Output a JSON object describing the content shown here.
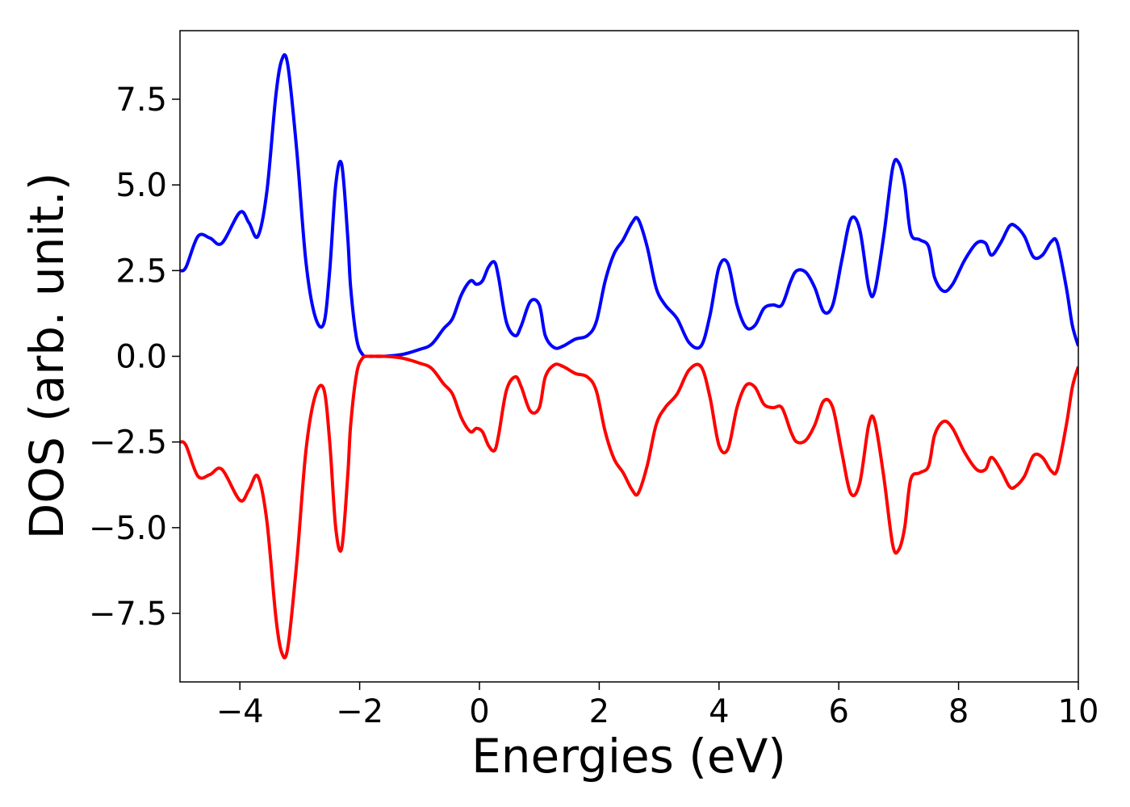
{
  "chart_data": {
    "type": "line",
    "title": "",
    "xlabel": "Energies (eV)",
    "ylabel": "DOS (arb. unit.)",
    "xlim": [
      -5,
      10
    ],
    "ylim": [
      -9.5,
      9.5
    ],
    "xticks": [
      -4,
      -2,
      0,
      2,
      4,
      6,
      8,
      10
    ],
    "xtick_labels": [
      "−4",
      "−2",
      "0",
      "2",
      "4",
      "6",
      "8",
      "10"
    ],
    "yticks": [
      7.5,
      5.0,
      2.5,
      0.0,
      -2.5,
      -5.0,
      -7.5
    ],
    "ytick_labels": [
      "7.5",
      "5.0",
      "2.5",
      "0.0",
      "−2.5",
      "−5.0",
      "−7.5"
    ],
    "grid": false,
    "legend": "none",
    "series": [
      {
        "color": "#0000ff",
        "x": [
          -5.0,
          -4.9,
          -4.7,
          -4.5,
          -4.3,
          -4.0,
          -3.85,
          -3.7,
          -3.55,
          -3.4,
          -3.3,
          -3.2,
          -3.05,
          -2.9,
          -2.75,
          -2.6,
          -2.5,
          -2.4,
          -2.3,
          -2.2,
          -2.15,
          -2.05,
          -1.95,
          -1.85,
          -1.75,
          -1.6,
          -1.3,
          -1.0,
          -0.8,
          -0.6,
          -0.45,
          -0.3,
          -0.15,
          -0.05,
          0.05,
          0.15,
          0.25,
          0.32,
          0.45,
          0.6,
          0.7,
          0.85,
          1.0,
          1.1,
          1.25,
          1.4,
          1.6,
          1.8,
          1.95,
          2.1,
          2.25,
          2.4,
          2.55,
          2.65,
          2.8,
          2.95,
          3.1,
          3.3,
          3.5,
          3.7,
          3.85,
          4.0,
          4.15,
          4.3,
          4.45,
          4.6,
          4.75,
          4.9,
          5.05,
          5.2,
          5.3,
          5.45,
          5.6,
          5.75,
          5.9,
          6.05,
          6.2,
          6.35,
          6.5,
          6.6,
          6.75,
          6.9,
          7.0,
          7.1,
          7.2,
          7.35,
          7.5,
          7.6,
          7.75,
          7.9,
          8.1,
          8.3,
          8.45,
          8.55,
          8.7,
          8.85,
          8.95,
          9.1,
          9.25,
          9.4,
          9.55,
          9.65,
          9.8,
          9.9,
          10.0
        ],
        "y": [
          2.5,
          2.6,
          3.5,
          3.45,
          3.3,
          4.2,
          3.9,
          3.5,
          4.8,
          7.6,
          8.65,
          8.5,
          6.0,
          2.8,
          1.2,
          0.95,
          2.5,
          5.0,
          5.6,
          3.5,
          2.0,
          0.5,
          0.05,
          0.0,
          0.0,
          0.0,
          0.05,
          0.2,
          0.35,
          0.8,
          1.1,
          1.8,
          2.2,
          2.1,
          2.2,
          2.6,
          2.75,
          2.3,
          1.0,
          0.6,
          0.9,
          1.6,
          1.5,
          0.6,
          0.25,
          0.3,
          0.5,
          0.6,
          1.0,
          2.2,
          3.0,
          3.4,
          3.9,
          4.0,
          3.2,
          2.0,
          1.5,
          1.1,
          0.4,
          0.3,
          1.2,
          2.6,
          2.7,
          1.5,
          0.85,
          0.9,
          1.4,
          1.5,
          1.5,
          2.2,
          2.5,
          2.45,
          2.0,
          1.3,
          1.5,
          2.8,
          4.0,
          3.7,
          2.0,
          1.9,
          3.5,
          5.5,
          5.65,
          5.0,
          3.6,
          3.4,
          3.2,
          2.3,
          1.9,
          2.1,
          2.8,
          3.3,
          3.3,
          2.95,
          3.3,
          3.8,
          3.8,
          3.5,
          2.9,
          2.95,
          3.35,
          3.3,
          2.0,
          0.9,
          0.3
        ]
      },
      {
        "color": "#ff0000",
        "x": [
          -5.0,
          -4.9,
          -4.7,
          -4.5,
          -4.3,
          -4.0,
          -3.85,
          -3.7,
          -3.55,
          -3.4,
          -3.3,
          -3.2,
          -3.05,
          -2.9,
          -2.75,
          -2.6,
          -2.5,
          -2.4,
          -2.3,
          -2.2,
          -2.15,
          -2.05,
          -1.95,
          -1.85,
          -1.75,
          -1.6,
          -1.3,
          -1.0,
          -0.8,
          -0.6,
          -0.45,
          -0.3,
          -0.15,
          -0.05,
          0.05,
          0.15,
          0.25,
          0.32,
          0.45,
          0.6,
          0.7,
          0.85,
          1.0,
          1.1,
          1.25,
          1.4,
          1.6,
          1.8,
          1.95,
          2.1,
          2.25,
          2.4,
          2.55,
          2.65,
          2.8,
          2.95,
          3.1,
          3.3,
          3.5,
          3.7,
          3.85,
          4.0,
          4.15,
          4.3,
          4.45,
          4.6,
          4.75,
          4.9,
          5.05,
          5.2,
          5.3,
          5.45,
          5.6,
          5.75,
          5.9,
          6.05,
          6.2,
          6.35,
          6.5,
          6.6,
          6.75,
          6.9,
          7.0,
          7.1,
          7.2,
          7.35,
          7.5,
          7.6,
          7.75,
          7.9,
          8.1,
          8.3,
          8.45,
          8.55,
          8.7,
          8.85,
          8.95,
          9.1,
          9.25,
          9.4,
          9.55,
          9.65,
          9.8,
          9.9,
          10.0
        ],
        "y": [
          -2.5,
          -2.6,
          -3.5,
          -3.45,
          -3.3,
          -4.2,
          -3.9,
          -3.5,
          -4.8,
          -7.6,
          -8.65,
          -8.5,
          -6.0,
          -2.8,
          -1.2,
          -0.95,
          -2.5,
          -5.0,
          -5.6,
          -3.5,
          -2.0,
          -0.5,
          -0.05,
          0.0,
          0.0,
          0.0,
          -0.05,
          -0.2,
          -0.35,
          -0.8,
          -1.1,
          -1.8,
          -2.2,
          -2.1,
          -2.2,
          -2.6,
          -2.75,
          -2.3,
          -1.0,
          -0.6,
          -0.9,
          -1.6,
          -1.5,
          -0.6,
          -0.25,
          -0.3,
          -0.5,
          -0.6,
          -1.0,
          -2.2,
          -3.0,
          -3.4,
          -3.9,
          -4.0,
          -3.2,
          -2.0,
          -1.5,
          -1.1,
          -0.4,
          -0.3,
          -1.2,
          -2.6,
          -2.7,
          -1.5,
          -0.85,
          -0.9,
          -1.4,
          -1.5,
          -1.5,
          -2.2,
          -2.5,
          -2.45,
          -2.0,
          -1.3,
          -1.5,
          -2.8,
          -4.0,
          -3.7,
          -2.0,
          -1.9,
          -3.5,
          -5.5,
          -5.65,
          -5.0,
          -3.6,
          -3.4,
          -3.2,
          -2.3,
          -1.9,
          -2.1,
          -2.8,
          -3.3,
          -3.3,
          -2.95,
          -3.3,
          -3.8,
          -3.8,
          -3.5,
          -2.9,
          -2.95,
          -3.35,
          -3.3,
          -2.0,
          -0.9,
          -0.3
        ]
      }
    ]
  }
}
